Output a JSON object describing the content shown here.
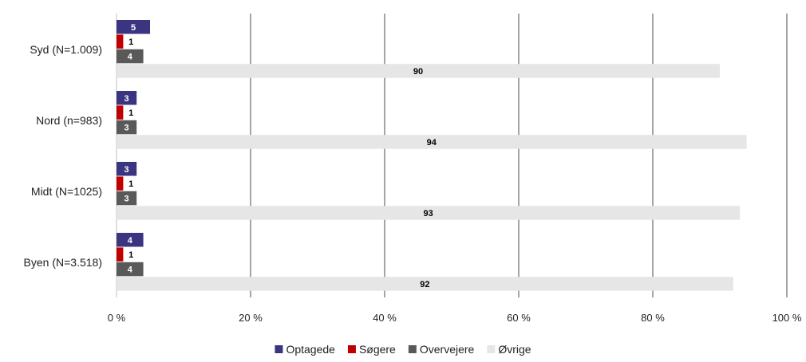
{
  "chart_data": {
    "type": "bar",
    "orientation": "horizontal",
    "categories": [
      "Syd (N=1.009)",
      "Nord (n=983)",
      "Midt (N=1025)",
      "Byen (N=3.518)"
    ],
    "series": [
      {
        "name": "Optagede",
        "color": "#3b3480",
        "values": [
          5,
          3,
          3,
          4
        ],
        "label_color": "#ffffff"
      },
      {
        "name": "Søgere",
        "color": "#c00000",
        "values": [
          1,
          1,
          1,
          1
        ],
        "label_color": "#000000"
      },
      {
        "name": "Overvejere",
        "color": "#595959",
        "values": [
          4,
          3,
          3,
          4
        ],
        "label_color": "#ffffff"
      },
      {
        "name": "Øvrige",
        "color": "#e6e6e6",
        "values": [
          90,
          94,
          93,
          92
        ],
        "label_color": "#000000"
      }
    ],
    "xlim": [
      0,
      100
    ],
    "x_ticks": [
      0,
      20,
      40,
      60,
      80,
      100
    ],
    "x_tick_labels": [
      "0 %",
      "20 %",
      "40 %",
      "60 %",
      "80 %",
      "100 %"
    ],
    "grid": true,
    "legend_position": "bottom",
    "title": "",
    "xlabel": "",
    "ylabel": ""
  }
}
